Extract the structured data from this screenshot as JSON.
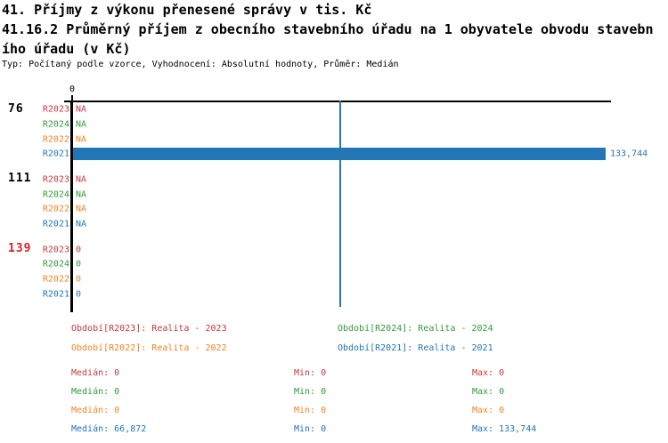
{
  "header": {
    "title_line1": "41. Příjmy z výkonu přenesené správy v tis. Kč",
    "title_line2": "41.16.2 Průměrný příjem z obecního stavebního úřadu na 1 obyvatele obvodu stavebn",
    "title_line3": "ího úřadu (v Kč)",
    "subtitle": "Typ: Počítaný podle vzorce, Vyhodnocení: Absolutní hodnoty, Průměr: Medián"
  },
  "colors": {
    "series_R2023": "#C8373C",
    "series_R2024": "#2E9B3C",
    "series_R2022": "#F5821E",
    "series_R2021": "#2276B5",
    "bar": "#2276B5",
    "median_line": "#2276B5",
    "highlighted_group_label": "#E01E23",
    "axis": "#000000",
    "background": "#FFFFFF"
  },
  "chart_data": {
    "type": "bar",
    "orientation": "horizontal",
    "x_axis_tick": "0",
    "x_min": 0,
    "median_line_value": 66872,
    "series_order": [
      "R2023",
      "R2024",
      "R2022",
      "R2021"
    ],
    "groups": [
      {
        "label": "76",
        "highlighted": false,
        "rows": [
          {
            "series": "R2023",
            "display": "NA",
            "value": null
          },
          {
            "series": "R2024",
            "display": "NA",
            "value": null
          },
          {
            "series": "R2022",
            "display": "NA",
            "value": null
          },
          {
            "series": "R2021",
            "display": "133,744",
            "value": 133744
          }
        ]
      },
      {
        "label": "111",
        "highlighted": false,
        "rows": [
          {
            "series": "R2023",
            "display": "NA",
            "value": null
          },
          {
            "series": "R2024",
            "display": "NA",
            "value": null
          },
          {
            "series": "R2022",
            "display": "NA",
            "value": null
          },
          {
            "series": "R2021",
            "display": "NA",
            "value": null
          }
        ]
      },
      {
        "label": "139",
        "highlighted": true,
        "rows": [
          {
            "series": "R2023",
            "display": "0",
            "value": 0
          },
          {
            "series": "R2024",
            "display": "0",
            "value": 0
          },
          {
            "series": "R2022",
            "display": "0",
            "value": 0
          },
          {
            "series": "R2021",
            "display": "0",
            "value": 0
          }
        ]
      }
    ],
    "stats": [
      {
        "series": "R2023",
        "median": 0,
        "min": 0,
        "max": 0
      },
      {
        "series": "R2024",
        "median": 0,
        "min": 0,
        "max": 0
      },
      {
        "series": "R2022",
        "median": 0,
        "min": 0,
        "max": 0
      },
      {
        "series": "R2021",
        "median": 66872,
        "min": 0,
        "max": 133744
      }
    ]
  },
  "legend": {
    "items": [
      {
        "series": "R2023",
        "label": "Období[R2023]: Realita - 2023"
      },
      {
        "series": "R2024",
        "label": "Období[R2024]: Realita - 2024"
      },
      {
        "series": "R2022",
        "label": "Období[R2022]: Realita - 2022"
      },
      {
        "series": "R2021",
        "label": "Období[R2021]: Realita - 2021"
      }
    ]
  },
  "stats_panel": {
    "rows": [
      {
        "series": "R2023",
        "cells": [
          "Medián: 0",
          "Min: 0",
          "Max: 0"
        ]
      },
      {
        "series": "R2024",
        "cells": [
          "Medián: 0",
          "Min: 0",
          "Max: 0"
        ]
      },
      {
        "series": "R2022",
        "cells": [
          "Medián: 0",
          "Min: 0",
          "Max: 0"
        ]
      },
      {
        "series": "R2021",
        "cells": [
          "Medián: 66,872",
          "Min: 0",
          "Max: 133,744"
        ]
      }
    ]
  }
}
